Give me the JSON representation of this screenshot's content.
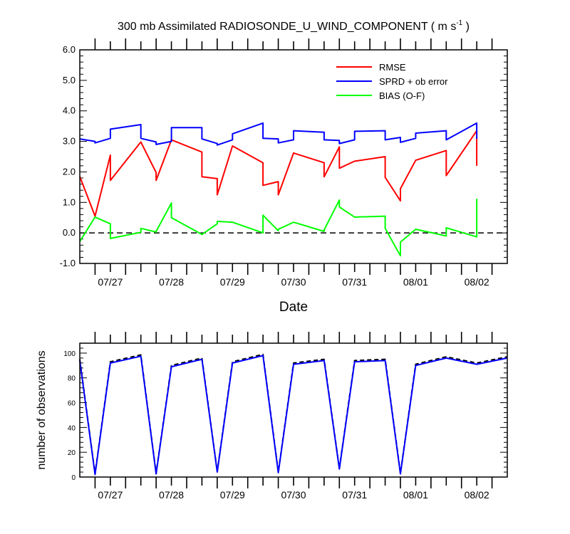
{
  "chart_data": [
    {
      "type": "line",
      "title": "300 mb Assimilated RADIOSONDE_U_WIND_COMPONENT ( m s",
      "title_sup": "-1",
      "title_end": " )",
      "xlabel": "Date",
      "ylabel": "",
      "xlim": [
        0,
        7
      ],
      "ylim": [
        -1.0,
        6.0
      ],
      "ytick_labels": [
        "-1.0",
        "0.0",
        "1.0",
        "2.0",
        "3.0",
        "4.0",
        "5.0",
        "6.0"
      ],
      "ytick_values": [
        -1,
        0,
        1,
        2,
        3,
        4,
        5,
        6
      ],
      "xtick_labels": [
        "07/27",
        "07/28",
        "07/29",
        "07/30",
        "07/31",
        "08/01",
        "08/02"
      ],
      "xtick_values": [
        0.5,
        1.5,
        2.5,
        3.5,
        4.5,
        5.5,
        6.5
      ],
      "reference_line": {
        "y": 0,
        "style": "dashed"
      },
      "legend_position": "top-right",
      "series": [
        {
          "name": "RMSE",
          "color": "#ff0000",
          "x": [
            0,
            0.25,
            0.5,
            0.5,
            1.0,
            1.25,
            1.25,
            1.5,
            2.0,
            2.0,
            2.25,
            2.25,
            2.5,
            3.0,
            3.0,
            3.25,
            3.25,
            3.5,
            4.0,
            4.0,
            4.25,
            4.25,
            4.5,
            5.0,
            5.0,
            5.25,
            5.25,
            5.5,
            6.0,
            6.0,
            6.5,
            6.5
          ],
          "y": [
            1.85,
            0.55,
            2.55,
            1.72,
            2.98,
            1.98,
            1.72,
            3.05,
            2.65,
            1.84,
            1.78,
            1.25,
            2.85,
            2.3,
            1.56,
            1.68,
            1.25,
            2.62,
            2.3,
            1.84,
            2.82,
            2.12,
            2.35,
            2.5,
            1.82,
            1.05,
            1.45,
            2.38,
            2.7,
            1.88,
            3.35,
            2.2
          ]
        },
        {
          "name": "SPRD + ob error",
          "color": "#0000ff",
          "x": [
            0,
            0.25,
            0.25,
            0.5,
            0.5,
            1.0,
            1.0,
            1.25,
            1.25,
            1.5,
            1.5,
            2.0,
            2.0,
            2.25,
            2.25,
            2.5,
            2.5,
            3.0,
            3.0,
            3.25,
            3.25,
            3.5,
            3.5,
            4.0,
            4.0,
            4.25,
            4.25,
            4.5,
            4.5,
            5.0,
            5.0,
            5.25,
            5.25,
            5.5,
            5.5,
            6.0,
            6.0,
            6.5,
            6.5
          ],
          "y": [
            3.08,
            3.0,
            2.95,
            3.1,
            3.4,
            3.55,
            3.1,
            2.98,
            2.9,
            3.0,
            3.45,
            3.45,
            3.08,
            2.93,
            2.88,
            3.05,
            3.25,
            3.6,
            3.1,
            3.08,
            2.95,
            3.05,
            3.35,
            3.3,
            3.05,
            3.03,
            2.93,
            3.05,
            3.33,
            3.35,
            3.05,
            3.13,
            2.97,
            3.1,
            3.27,
            3.35,
            3.05,
            3.6,
            3.08
          ]
        },
        {
          "name": "BIAS (O-F)",
          "color": "#00ff00",
          "x": [
            0,
            0.25,
            0.5,
            0.5,
            1.0,
            1.0,
            1.25,
            1.25,
            1.5,
            1.5,
            2.0,
            2.25,
            2.25,
            2.5,
            3.0,
            3.0,
            3.25,
            3.25,
            3.5,
            4.0,
            4.0,
            4.25,
            4.25,
            4.5,
            5.0,
            5.0,
            5.25,
            5.25,
            5.5,
            6.0,
            6.0,
            6.5,
            6.5
          ],
          "y": [
            -0.28,
            0.52,
            0.3,
            -0.18,
            0.02,
            0.15,
            0.03,
            0.05,
            0.98,
            0.5,
            -0.05,
            0.3,
            0.38,
            0.35,
            0.0,
            0.58,
            0.07,
            0.12,
            0.35,
            0.05,
            0.1,
            1.08,
            0.85,
            0.52,
            0.55,
            0.15,
            -0.75,
            -0.3,
            0.12,
            -0.1,
            0.17,
            -0.13,
            1.12
          ]
        }
      ]
    },
    {
      "type": "line",
      "title": "",
      "xlabel": "",
      "ylabel": "number of observations",
      "xlim": [
        0,
        7
      ],
      "ylim": [
        0,
        108
      ],
      "ytick_labels": [
        "0",
        "20",
        "40",
        "60",
        "80",
        "100"
      ],
      "ytick_values": [
        0,
        20,
        40,
        60,
        80,
        100
      ],
      "xtick_labels": [
        "07/27",
        "07/28",
        "07/29",
        "07/30",
        "07/31",
        "08/01",
        "08/02"
      ],
      "xtick_values": [
        0.5,
        1.5,
        2.5,
        3.5,
        4.5,
        5.5,
        6.5
      ],
      "series": [
        {
          "name": "dashed",
          "color": "#000000",
          "style": "dashed",
          "x": [
            0,
            0.25,
            0.5,
            1.0,
            1.25,
            1.5,
            2.0,
            2.25,
            2.5,
            3.0,
            3.25,
            3.5,
            4.0,
            4.25,
            4.5,
            5.0,
            5.25,
            5.5,
            6.0,
            6.5,
            7.0
          ],
          "y": [
            95,
            2.5,
            93,
            98.5,
            3,
            90,
            96,
            4.5,
            93,
            99,
            4,
            92,
            95,
            7,
            94,
            95,
            3,
            91,
            97,
            92,
            97
          ]
        },
        {
          "name": "solid",
          "color": "#0000ff",
          "style": "solid",
          "x": [
            0,
            0.25,
            0.5,
            1.0,
            1.25,
            1.5,
            2.0,
            2.25,
            2.5,
            3.0,
            3.25,
            3.5,
            4.0,
            4.25,
            4.5,
            5.0,
            5.25,
            5.5,
            6.0,
            6.5,
            7.0
          ],
          "y": [
            94,
            2,
            92,
            97.5,
            2.5,
            89,
            95,
            4,
            92,
            98,
            3.5,
            91,
            94,
            6.5,
            93,
            94,
            2.5,
            90,
            96,
            91,
            96
          ]
        }
      ]
    }
  ]
}
